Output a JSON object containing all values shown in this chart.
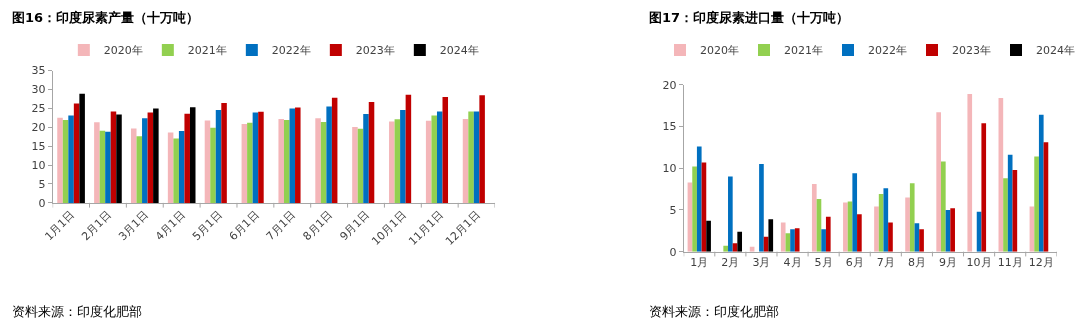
{
  "chart_data": [
    {
      "type": "bar",
      "title": "图16：印度尿素产量（十万吨）",
      "categories": [
        "1月1日",
        "2月1日",
        "3月1日",
        "4月1日",
        "5月1日",
        "6月1日",
        "7月1日",
        "8月1日",
        "9月1日",
        "10月1日",
        "11月1日",
        "12月1日"
      ],
      "series": [
        {
          "name": "2020年",
          "color": "#f4b6b9",
          "values": [
            22.5,
            21.3,
            19.7,
            18.6,
            21.8,
            20.9,
            22.2,
            22.4,
            20.1,
            21.5,
            21.7,
            22.2
          ]
        },
        {
          "name": "2021年",
          "color": "#92d050",
          "values": [
            21.9,
            19.1,
            17.6,
            17.0,
            19.9,
            21.2,
            21.9,
            21.4,
            19.6,
            22.1,
            23.1,
            24.2
          ]
        },
        {
          "name": "2022年",
          "color": "#0070c0",
          "values": [
            23.1,
            18.8,
            22.4,
            19.0,
            24.6,
            23.9,
            25.0,
            25.5,
            23.5,
            24.6,
            24.2,
            24.2
          ]
        },
        {
          "name": "2023年",
          "color": "#c00000",
          "values": [
            26.3,
            24.2,
            23.9,
            23.6,
            26.4,
            24.1,
            25.2,
            27.8,
            26.7,
            28.6,
            28.0,
            28.5
          ]
        },
        {
          "name": "2024年",
          "color": "#000000",
          "values": [
            28.9,
            23.4,
            25.0,
            25.3,
            null,
            null,
            null,
            null,
            null,
            null,
            null,
            null
          ]
        }
      ],
      "ylim": [
        0,
        35
      ],
      "yticks": [
        0,
        5,
        10,
        15,
        20,
        25,
        30,
        35
      ],
      "legend": "top",
      "annotations": [
        "资料来源：印度化肥部"
      ]
    },
    {
      "type": "bar",
      "title": "图17：印度尿素进口量（十万吨）",
      "categories": [
        "1月",
        "2月",
        "3月",
        "4月",
        "5月",
        "6月",
        "7月",
        "8月",
        "9月",
        "10月",
        "11月",
        "12月"
      ],
      "series": [
        {
          "name": "2020年",
          "color": "#f4b6b9",
          "values": [
            8.3,
            null,
            0.6,
            3.5,
            8.1,
            5.9,
            5.4,
            6.5,
            16.7,
            18.9,
            18.4,
            5.4
          ]
        },
        {
          "name": "2021年",
          "color": "#92d050",
          "values": [
            10.2,
            0.7,
            null,
            2.2,
            6.3,
            6.0,
            6.9,
            8.2,
            10.8,
            null,
            8.8,
            11.4
          ]
        },
        {
          "name": "2022年",
          "color": "#0070c0",
          "values": [
            12.6,
            9.0,
            10.5,
            2.7,
            2.7,
            9.4,
            7.6,
            3.4,
            5.0,
            4.8,
            11.6,
            16.4
          ]
        },
        {
          "name": "2023年",
          "color": "#c00000",
          "values": [
            10.7,
            1.0,
            1.8,
            2.8,
            4.2,
            4.5,
            3.5,
            2.7,
            5.2,
            15.4,
            9.8,
            13.1
          ]
        },
        {
          "name": "2024年",
          "color": "#000000",
          "values": [
            3.7,
            2.4,
            3.9,
            null,
            null,
            null,
            null,
            null,
            null,
            null,
            null,
            null
          ]
        }
      ],
      "ylim": [
        0,
        20
      ],
      "yticks": [
        0,
        5,
        10,
        15,
        20
      ],
      "legend": "top",
      "annotations": [
        "资料来源：印度化肥部"
      ]
    }
  ]
}
